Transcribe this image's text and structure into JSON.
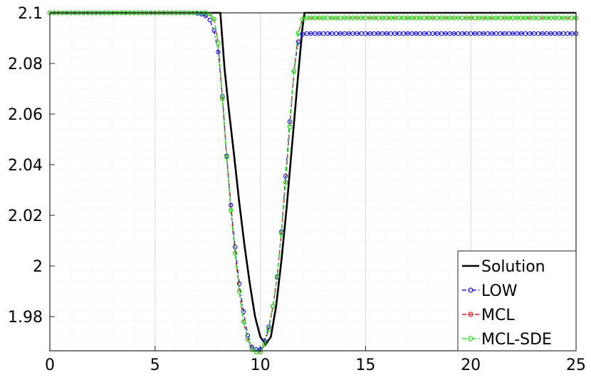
{
  "chart_data": {
    "type": "line",
    "title": "",
    "xlabel": "",
    "ylabel": "",
    "xlim": [
      0,
      25
    ],
    "ylim": [
      1.9665,
      2.1
    ],
    "grid": true,
    "minor_grid": true,
    "legend_position": "bottom-right",
    "x_ticks": [
      "0",
      "5",
      "10",
      "15",
      "20",
      "25"
    ],
    "y_ticks": [
      "1.98",
      "2",
      "2.02",
      "2.04",
      "2.06",
      "2.08",
      "2.1"
    ],
    "series": [
      {
        "name": "Solution",
        "color": "#000000",
        "style": "solid",
        "marker": "none",
        "x": [
          0,
          8.1,
          8.3,
          8.5,
          8.75,
          9.0,
          9.25,
          9.5,
          9.75,
          10.0,
          10.25,
          10.5,
          10.75,
          11.0,
          11.25,
          11.5,
          11.75,
          12.0,
          12.1,
          25
        ],
        "y": [
          2.1,
          2.1,
          2.078,
          2.062,
          2.044,
          2.025,
          2.008,
          1.993,
          1.98,
          1.972,
          1.969,
          1.972,
          1.984,
          2.002,
          2.023,
          2.047,
          2.071,
          2.094,
          2.1,
          2.1
        ]
      },
      {
        "name": "LOW",
        "color": "#1515d8",
        "style": "dashdot",
        "marker": "circle",
        "x": [
          0,
          6.8,
          7.0,
          7.2,
          7.4,
          7.6,
          7.8,
          8.0,
          8.2,
          8.4,
          8.6,
          8.8,
          9.0,
          9.2,
          9.4,
          9.6,
          9.8,
          10.0,
          10.2,
          10.4,
          10.6,
          10.8,
          11.0,
          11.2,
          11.4,
          11.6,
          11.8,
          12.0,
          12.2,
          25
        ],
        "y": [
          2.1,
          2.1,
          2.0998,
          2.0995,
          2.0988,
          2.0972,
          2.093,
          2.0845,
          2.067,
          2.0435,
          2.024,
          2.0075,
          1.993,
          1.982,
          1.9725,
          1.968,
          1.967,
          1.967,
          1.9705,
          1.976,
          1.984,
          1.9955,
          2.0135,
          2.0355,
          2.057,
          2.077,
          2.0885,
          2.0915,
          2.0918,
          2.0918
        ]
      },
      {
        "name": "MCL",
        "color": "#e8141e",
        "style": "dashed",
        "marker": "circle",
        "x": [
          0,
          7.4,
          7.6,
          7.8,
          8.0,
          8.2,
          8.4,
          8.6,
          8.8,
          9.0,
          9.2,
          9.4,
          9.6,
          9.8,
          10.0,
          10.2,
          10.4,
          10.6,
          10.8,
          11.0,
          11.2,
          11.4,
          11.6,
          11.8,
          12.0,
          12.2,
          25
        ],
        "y": [
          2.1,
          2.1,
          2.0995,
          2.0975,
          2.088,
          2.066,
          2.043,
          2.022,
          2.005,
          1.99,
          1.978,
          1.971,
          1.967,
          1.966,
          1.966,
          1.969,
          1.975,
          1.984,
          1.996,
          2.013,
          2.033,
          2.055,
          2.077,
          2.092,
          2.0975,
          2.098,
          2.098
        ]
      },
      {
        "name": "MCL-SDE",
        "color": "#22e822",
        "style": "dashdot",
        "marker": "circle",
        "x": [
          0,
          7.4,
          7.6,
          7.8,
          8.0,
          8.2,
          8.4,
          8.6,
          8.8,
          9.0,
          9.2,
          9.4,
          9.6,
          9.8,
          10.0,
          10.2,
          10.4,
          10.6,
          10.8,
          11.0,
          11.2,
          11.4,
          11.6,
          11.8,
          12.0,
          12.2,
          25
        ],
        "y": [
          2.1,
          2.1,
          2.0995,
          2.0975,
          2.088,
          2.066,
          2.043,
          2.022,
          2.005,
          1.99,
          1.978,
          1.971,
          1.967,
          1.966,
          1.966,
          1.969,
          1.975,
          1.984,
          1.996,
          2.013,
          2.033,
          2.055,
          2.077,
          2.092,
          2.0975,
          2.098,
          2.098
        ]
      }
    ]
  }
}
